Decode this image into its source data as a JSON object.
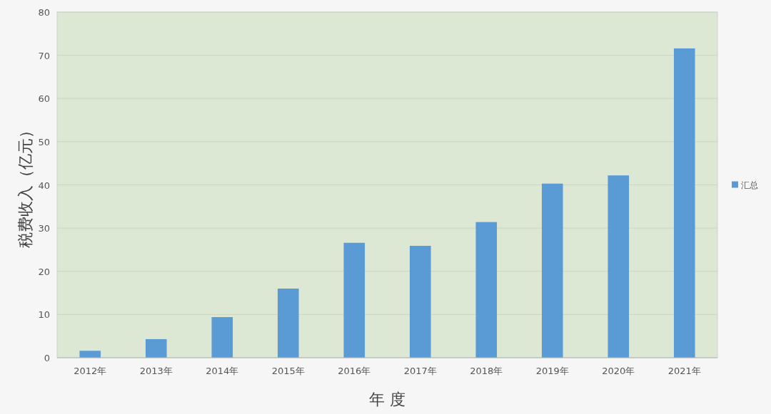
{
  "chart_data": {
    "type": "bar",
    "xlabel": "年 度",
    "ylabel": "税费收入（亿元）",
    "categories": [
      "2012年",
      "2013年",
      "2014年",
      "2015年",
      "2016年",
      "2017年",
      "2018年",
      "2019年",
      "2020年",
      "2021年"
    ],
    "series": [
      {
        "name": "汇总",
        "color": "#5b9bd5",
        "values": [
          1.6,
          4.3,
          9.4,
          16.0,
          26.6,
          25.9,
          31.4,
          40.3,
          42.2,
          71.6
        ]
      }
    ],
    "ylim": [
      0,
      80
    ],
    "yticks": [
      0,
      10,
      20,
      30,
      40,
      50,
      60,
      70,
      80
    ],
    "grid": "y",
    "legend": "right"
  }
}
